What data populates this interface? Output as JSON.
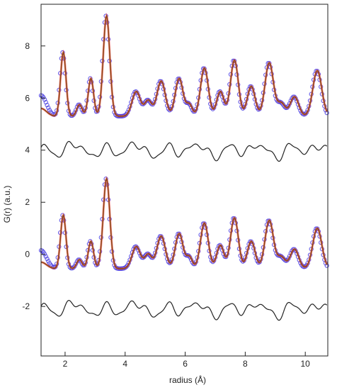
{
  "chart_data": {
    "type": "line",
    "xlabel": "radius (Å)",
    "ylabel": "G(r) (a.u.)",
    "xlim": [
      1.2,
      10.75
    ],
    "ylim": [
      -3.9,
      9.6
    ],
    "x_ticks": [
      2,
      4,
      6,
      8,
      10
    ],
    "y_ticks": [
      -2,
      0,
      2,
      4,
      6,
      8
    ],
    "grid": false,
    "legend": "none",
    "colors": {
      "data": "#4a3ee0",
      "fit": "#8b4a1a",
      "fit_outline": "#ff3a3a",
      "difference": "#222222"
    },
    "peaks_top": [
      [
        1.92,
        2.45,
        0.09
      ],
      [
        2.46,
        0.45,
        0.09
      ],
      [
        2.84,
        1.45,
        0.09
      ],
      [
        3.36,
        3.85,
        0.11
      ],
      [
        4.35,
        0.95,
        0.14
      ],
      [
        4.75,
        0.6,
        0.12
      ],
      [
        5.18,
        1.35,
        0.14
      ],
      [
        5.78,
        1.45,
        0.13
      ],
      [
        6.12,
        0.45,
        0.1
      ],
      [
        6.62,
        1.85,
        0.13
      ],
      [
        7.15,
        0.95,
        0.12
      ],
      [
        7.62,
        2.15,
        0.13
      ],
      [
        8.18,
        1.15,
        0.13
      ],
      [
        8.78,
        2.05,
        0.14
      ],
      [
        9.18,
        0.5,
        0.13
      ],
      [
        9.62,
        0.75,
        0.14
      ],
      [
        10.38,
        1.75,
        0.15
      ]
    ],
    "peaks_bottom": [
      [
        1.92,
        2.05,
        0.09
      ],
      [
        2.46,
        0.35,
        0.09
      ],
      [
        2.84,
        1.05,
        0.09
      ],
      [
        3.36,
        3.45,
        0.11
      ],
      [
        4.35,
        0.85,
        0.14
      ],
      [
        4.75,
        0.55,
        0.12
      ],
      [
        5.18,
        1.25,
        0.14
      ],
      [
        5.78,
        1.35,
        0.13
      ],
      [
        6.12,
        0.45,
        0.1
      ],
      [
        6.62,
        1.75,
        0.13
      ],
      [
        7.15,
        0.9,
        0.12
      ],
      [
        7.62,
        1.95,
        0.13
      ],
      [
        8.18,
        1.05,
        0.13
      ],
      [
        8.78,
        1.85,
        0.14
      ],
      [
        9.18,
        0.45,
        0.13
      ],
      [
        9.62,
        0.75,
        0.14
      ],
      [
        10.38,
        1.55,
        0.15
      ]
    ],
    "series": [
      {
        "panel": "top",
        "role": "data",
        "baseline": 5.3,
        "tail": 6.1
      },
      {
        "panel": "top",
        "role": "fit",
        "baseline": 5.3,
        "tail": 5.6
      },
      {
        "panel": "top",
        "role": "difference",
        "baseline": 4.0
      },
      {
        "panel": "bottom",
        "role": "data",
        "baseline": -0.55,
        "tail": 0.15
      },
      {
        "panel": "bottom",
        "role": "fit",
        "baseline": -0.55,
        "tail": -0.3
      },
      {
        "panel": "bottom",
        "role": "difference",
        "baseline": -2.1
      }
    ],
    "difference_terms": [
      [
        0.18,
        6.1,
        0.0
      ],
      [
        0.12,
        9.3,
        1.3
      ],
      [
        0.08,
        14.7,
        2.1
      ],
      [
        0.1,
        3.2,
        0.7
      ]
    ]
  }
}
